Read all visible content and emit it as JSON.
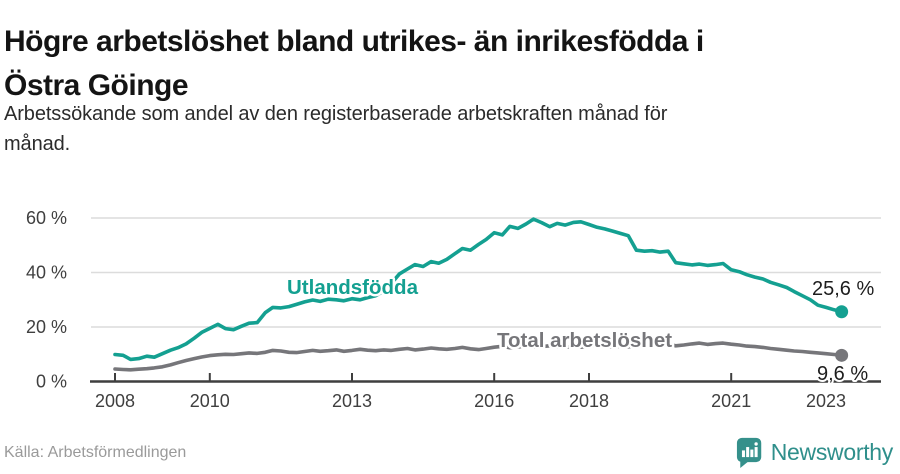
{
  "header": {
    "title_lines": [
      "Högre arbetslöshet bland utrikes- än inrikesfödda i",
      "Östra Göinge"
    ],
    "subtitle_lines": [
      "Arbetssökande som andel av den registerbaserade arbetskraften månad för",
      "månad."
    ]
  },
  "footer": {
    "source": "Källa: Arbetsförmedlingen",
    "brand": "Newsworthy",
    "brand_color": "#2f8f8b",
    "logo_icon": "bar-chart-speech-bubble-icon"
  },
  "colors": {
    "accent_teal": "#14a091",
    "line_gray": "#76767a",
    "axis": "#3f3f3f",
    "gridline": "#dcdcdc",
    "value_label": "#1d1d1d"
  },
  "chart_data": {
    "type": "line",
    "title": "Högre arbetslöshet bland utrikes- än inrikesfödda i Östra Göinge",
    "subtitle": "Arbetssökande som andel av den registerbaserade arbetskraften månad för månad.",
    "xlabel": "",
    "ylabel": "",
    "grid": true,
    "legend_position": "inline",
    "x_range": [
      2007.5,
      2023.8
    ],
    "ylim": [
      0,
      63
    ],
    "y_ticks": [
      0,
      20,
      40,
      60
    ],
    "y_tick_labels": [
      "0 %",
      "20 %",
      "40 %",
      "60 %"
    ],
    "x_ticks": [
      2008,
      2010,
      2013,
      2016,
      2018,
      2021,
      2023
    ],
    "x_tick_labels": [
      "2008",
      "2010",
      "2013",
      "2016",
      "2018",
      "2021",
      "2023"
    ],
    "x": [
      2008,
      2008.17,
      2008.33,
      2008.5,
      2008.67,
      2008.83,
      2009,
      2009.17,
      2009.33,
      2009.5,
      2009.67,
      2009.83,
      2010,
      2010.17,
      2010.33,
      2010.5,
      2010.67,
      2010.83,
      2011,
      2011.17,
      2011.33,
      2011.5,
      2011.67,
      2011.83,
      2012,
      2012.17,
      2012.33,
      2012.5,
      2012.67,
      2012.83,
      2013,
      2013.17,
      2013.33,
      2013.5,
      2013.67,
      2013.83,
      2014,
      2014.17,
      2014.33,
      2014.5,
      2014.67,
      2014.83,
      2015,
      2015.17,
      2015.33,
      2015.5,
      2015.67,
      2015.83,
      2016,
      2016.17,
      2016.33,
      2016.5,
      2016.67,
      2016.83,
      2017,
      2017.17,
      2017.33,
      2017.5,
      2017.67,
      2017.83,
      2018,
      2018.17,
      2018.33,
      2018.5,
      2018.67,
      2018.83,
      2019,
      2019.17,
      2019.33,
      2019.5,
      2019.67,
      2019.83,
      2020,
      2020.17,
      2020.33,
      2020.5,
      2020.67,
      2020.83,
      2021,
      2021.17,
      2021.33,
      2021.5,
      2021.67,
      2021.83,
      2022,
      2022.17,
      2022.33,
      2022.5,
      2022.67,
      2022.83,
      2023,
      2023.17,
      2023.33
    ],
    "series": [
      {
        "name": "Utlandsfödda",
        "color": "#14a091",
        "end_label": "25,6 %",
        "end_value": 25.6,
        "values": [
          9.9,
          9.6,
          8.1,
          8.4,
          9.3,
          8.9,
          10.2,
          11.5,
          12.4,
          13.8,
          15.9,
          18.0,
          19.5,
          21.0,
          19.4,
          19.0,
          20.3,
          21.4,
          21.6,
          25.3,
          27.2,
          27.0,
          27.5,
          28.3,
          29.2,
          29.9,
          29.4,
          30.2,
          30.0,
          29.6,
          30.4,
          30.0,
          30.8,
          31.5,
          33.2,
          36.0,
          39.5,
          41.3,
          42.9,
          42.2,
          44.0,
          43.4,
          44.8,
          46.9,
          48.8,
          48.2,
          50.3,
          52.1,
          54.6,
          53.8,
          56.9,
          56.2,
          57.8,
          59.6,
          58.3,
          56.8,
          58.0,
          57.4,
          58.4,
          58.6,
          57.6,
          56.6,
          56.0,
          55.2,
          54.3,
          53.5,
          48.2,
          47.8,
          48.0,
          47.5,
          47.8,
          43.6,
          43.2,
          42.8,
          43.1,
          42.6,
          42.9,
          43.3,
          41.0,
          40.3,
          39.2,
          38.3,
          37.6,
          36.4,
          35.5,
          34.5,
          33.0,
          31.5,
          30.0,
          28.0,
          27.2,
          26.3,
          25.6
        ]
      },
      {
        "name": "Total arbetslöshet",
        "color": "#76767a",
        "end_label": "9,6 %",
        "end_value": 9.6,
        "values": [
          4.6,
          4.4,
          4.3,
          4.5,
          4.7,
          5.0,
          5.4,
          6.1,
          6.9,
          7.7,
          8.4,
          9.0,
          9.5,
          9.8,
          10.0,
          9.9,
          10.2,
          10.5,
          10.3,
          10.7,
          11.4,
          11.2,
          10.7,
          10.6,
          11.0,
          11.4,
          11.1,
          11.3,
          11.6,
          11.1,
          11.4,
          11.8,
          11.5,
          11.3,
          11.6,
          11.4,
          11.8,
          12.1,
          11.6,
          11.9,
          12.3,
          12.0,
          11.8,
          12.1,
          12.5,
          12.0,
          11.7,
          12.1,
          12.6,
          12.9,
          12.4,
          12.7,
          13.0,
          12.6,
          12.8,
          13.1,
          12.7,
          12.5,
          12.9,
          12.6,
          13.0,
          13.3,
          12.9,
          12.6,
          13.0,
          12.7,
          13.1,
          13.4,
          13.0,
          13.3,
          13.6,
          13.1,
          13.4,
          13.8,
          14.1,
          13.6,
          13.9,
          14.1,
          13.7,
          13.4,
          13.0,
          12.8,
          12.5,
          12.1,
          11.8,
          11.5,
          11.2,
          11.0,
          10.7,
          10.5,
          10.2,
          9.9,
          9.6
        ]
      }
    ]
  }
}
